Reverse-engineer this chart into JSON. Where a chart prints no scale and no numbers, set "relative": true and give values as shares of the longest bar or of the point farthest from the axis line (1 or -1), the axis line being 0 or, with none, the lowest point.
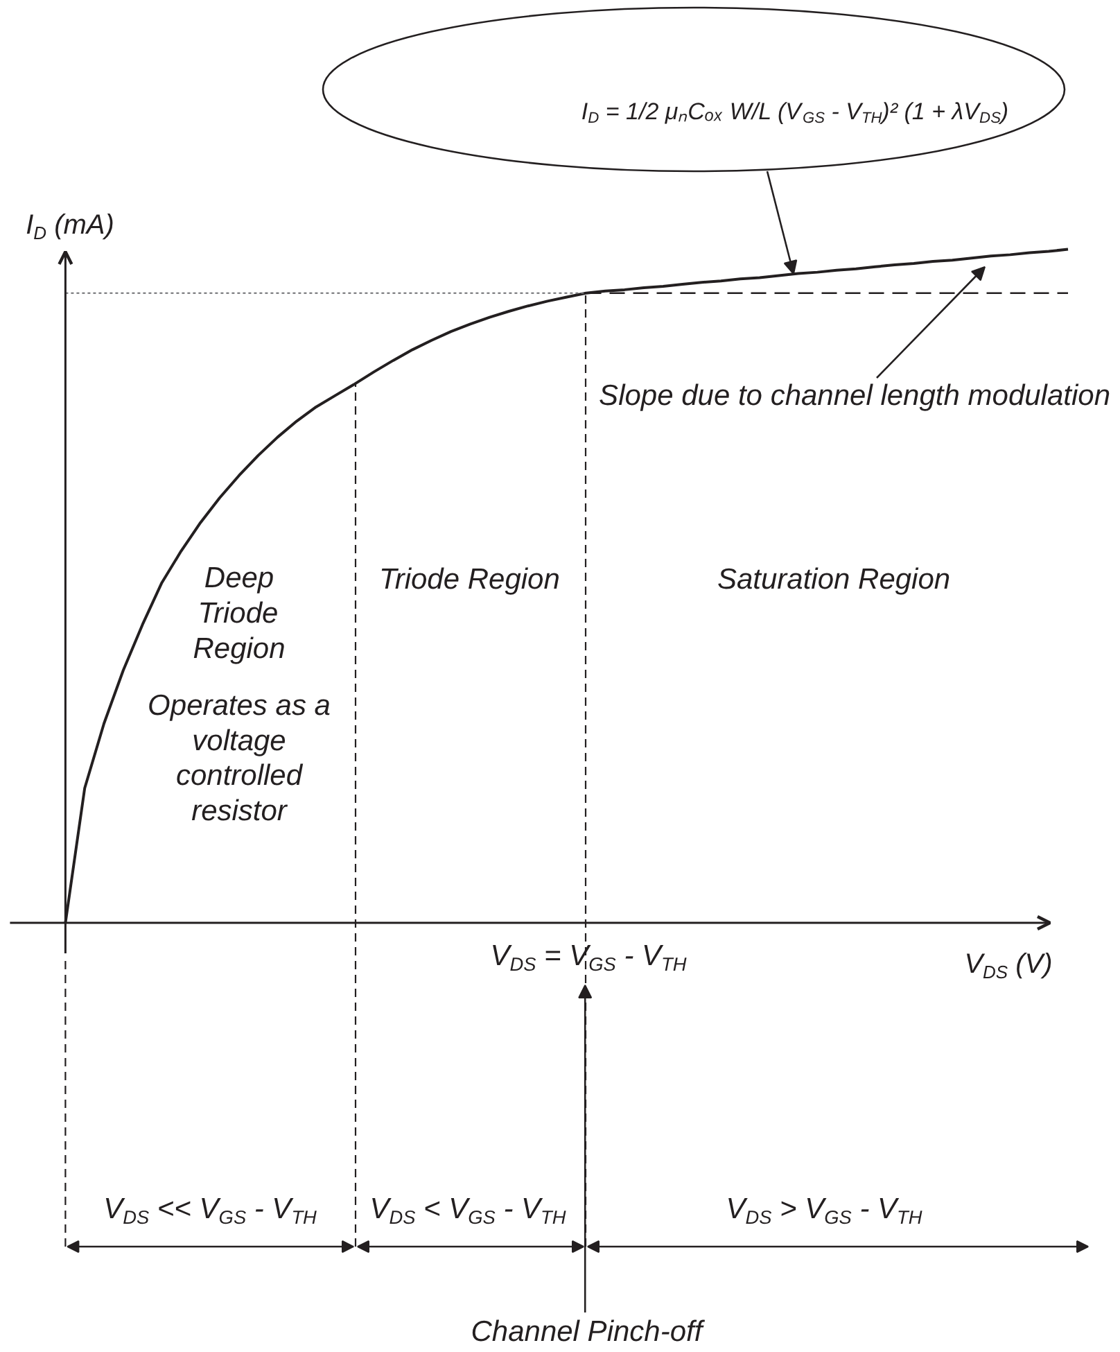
{
  "chart_data": {
    "type": "line",
    "relative": true,
    "line_style": "solid",
    "xlabel": "V$_{DS}$ (V)",
    "ylabel": "I$_{D}$ (mA)",
    "categories": [
      null,
      null,
      null,
      null,
      null,
      null,
      null,
      null,
      null,
      null,
      null,
      null,
      null,
      null,
      null,
      null,
      null,
      null,
      null,
      null,
      null,
      null,
      null,
      null,
      null,
      null,
      null,
      null,
      null,
      null,
      null,
      null,
      null,
      null,
      null,
      null,
      null,
      null,
      null,
      null,
      null,
      null,
      null,
      null,
      null,
      null,
      null,
      null,
      null,
      null,
      null,
      null,
      null
    ],
    "series": [
      {
        "color": "#231f20",
        "values": [
          0,
          0.2,
          0.296,
          0.375,
          0.443,
          0.505,
          0.552,
          0.594,
          0.631,
          0.664,
          0.694,
          0.721,
          0.745,
          0.766,
          0.783,
          0.8,
          0.818,
          0.835,
          0.851,
          0.865,
          0.878,
          0.889,
          0.899,
          0.908,
          0.916,
          0.923,
          0.929,
          0.935,
          0.938,
          0.94,
          0.943,
          0.945,
          0.948,
          0.951,
          0.953,
          0.956,
          0.958,
          0.961,
          0.964,
          0.966,
          0.969,
          0.971,
          0.974,
          0.977,
          0.979,
          0.982,
          0.984,
          0.987,
          0.99,
          0.992,
          0.995,
          0.997,
          1
        ]
      },
      {
        "color": "#231f20",
        "line_style": "dashed",
        "values": [
          null,
          null,
          null,
          null,
          null,
          null,
          null,
          null,
          null,
          null,
          null,
          null,
          null,
          null,
          null,
          null,
          null,
          null,
          null,
          null,
          null,
          null,
          null,
          null,
          null,
          null,
          null,
          0.935,
          0.935,
          0.935,
          0.935,
          0.935,
          0.935,
          0.935,
          0.935,
          0.935,
          0.935,
          0.935,
          0.935,
          0.935,
          0.935,
          0.935,
          0.935,
          0.935,
          0.935,
          0.935,
          0.935,
          0.935,
          0.935,
          0.935,
          0.935,
          0.935,
          0.935
        ]
      }
    ],
    "ref_lines": [
      {
        "axis": "y",
        "value": 0.935,
        "line_style": "dotted",
        "color": "#6d6e71"
      }
    ],
    "annotations": [
      "I$_{D}$ = 1/2 μₙCₒₓ W/L (V$_{GS}$ - V$_{TH}$)² (1 + λV$_{DS}$)",
      "Slope due to channel length modulation",
      "Deep Triode Region",
      "Triode Region",
      "Saturation Region",
      "Operates as a voltage controlled resistor",
      "V$_{DS}$ = V$_{GS}$ - V$_{TH}$",
      "V$_{DS}$ << V$_{GS}$ - V$_{TH}$",
      "V$_{DS}$ < V$_{GS}$ - V$_{TH}$",
      "V$_{DS}$ > V$_{GS}$ - V$_{TH}$",
      "Channel Pinch-off"
    ]
  }
}
